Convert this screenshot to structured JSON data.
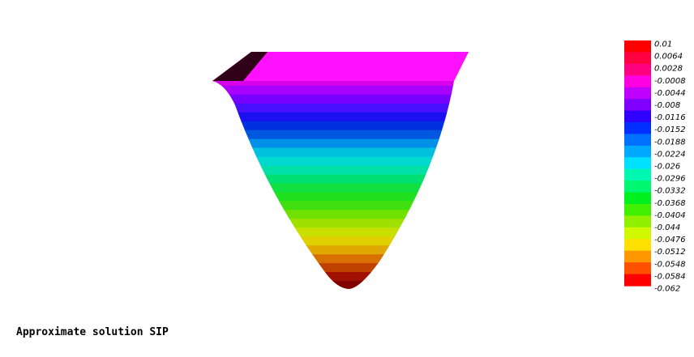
{
  "caption": "Approximate solution SIP",
  "colorbar": {
    "labels": [
      "0.01",
      "0.0064",
      "0.0028",
      "-0.0008",
      "-0.0044",
      "-0.008",
      "-0.0116",
      "-0.0152",
      "-0.0188",
      "-0.0224",
      "-0.026",
      "-0.0296",
      "-0.0332",
      "-0.0368",
      "-0.0404",
      "-0.044",
      "-0.0476",
      "-0.0512",
      "-0.0548",
      "-0.0584",
      "-0.062"
    ],
    "colors": [
      "#ff0000",
      "#ff0040",
      "#ff0080",
      "#ff00e0",
      "#c000ff",
      "#8000ff",
      "#3000ff",
      "#0030ff",
      "#0070ff",
      "#00a8ff",
      "#00e0ff",
      "#00f8b0",
      "#00f870",
      "#00f020",
      "#40f000",
      "#90f000",
      "#d0f800",
      "#ffe000",
      "#ff9800",
      "#ff5000",
      "#ff0000"
    ]
  },
  "surface_bands": [
    "#200010",
    "#ff00ff",
    "#f000e8",
    "#d800e8",
    "#a800ff",
    "#7800ff",
    "#4810ff",
    "#1a10f0",
    "#0030e0",
    "#0058e0",
    "#0090e8",
    "#00c0e0",
    "#00d8d0",
    "#00e0a8",
    "#00e070",
    "#10e040",
    "#20e020",
    "#40e010",
    "#70e000",
    "#a0e000",
    "#c8e000",
    "#e0d000",
    "#e0a800",
    "#d87000",
    "#c04000",
    "#a01000",
    "#800000"
  ]
}
